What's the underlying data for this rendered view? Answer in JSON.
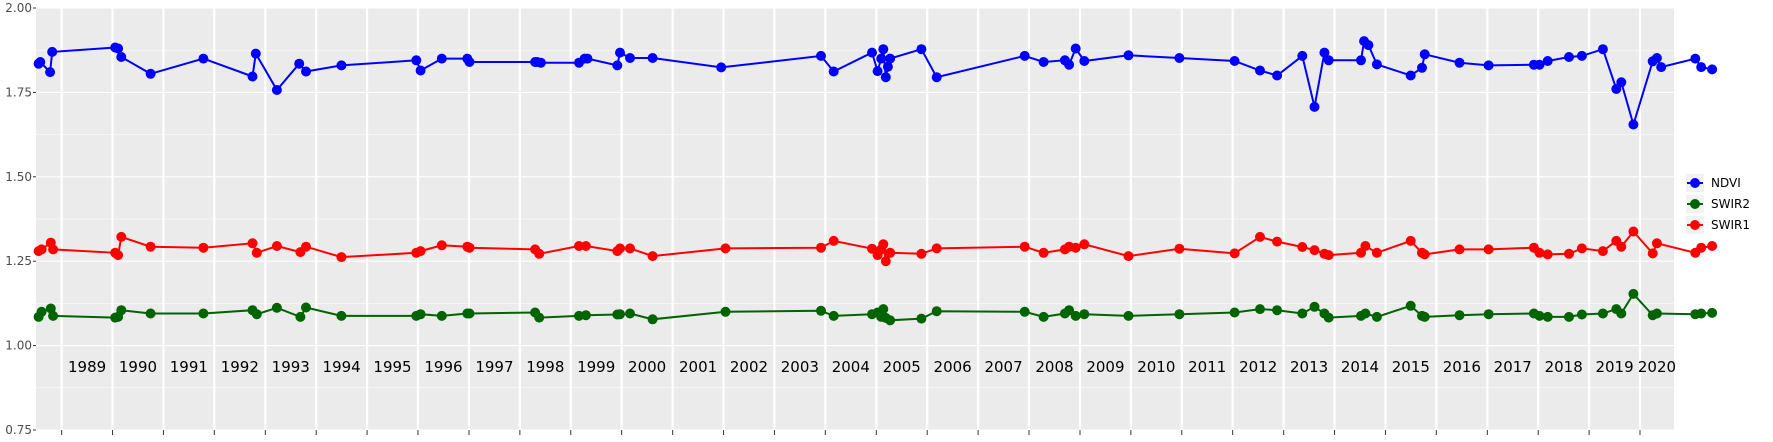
{
  "chart_data": {
    "type": "line",
    "x_axis": {
      "kind": "date",
      "xlim": [
        "1988-07-01",
        "2020-09-01"
      ]
    },
    "ylim": [
      0.75,
      2.0
    ],
    "y_ticks": [
      "0.75",
      "1.00",
      "1.25",
      "1.50",
      "1.75",
      "2.00"
    ],
    "year_labels": [
      "1989",
      "1990",
      "1991",
      "1992",
      "1993",
      "1994",
      "1995",
      "1996",
      "1997",
      "1998",
      "1999",
      "2000",
      "2001",
      "2002",
      "2003",
      "2004",
      "2005",
      "2006",
      "2007",
      "2008",
      "2009",
      "2010",
      "2011",
      "2012",
      "2013",
      "2014",
      "2015",
      "2016",
      "2017",
      "2018",
      "2019",
      "2020"
    ],
    "grid": true,
    "legend_position": "right",
    "series": [
      {
        "name": "NDVI",
        "color": "#0000FF",
        "points": [
          [
            "1988-07-20",
            1.835
          ],
          [
            "1988-08-01",
            1.84
          ],
          [
            "1988-10-10",
            1.81
          ],
          [
            "1988-10-25",
            1.87
          ],
          [
            "1990-01-20",
            1.883
          ],
          [
            "1990-02-10",
            1.88
          ],
          [
            "1990-03-05",
            1.855
          ],
          [
            "1990-10-01",
            1.805
          ],
          [
            "1991-10-15",
            1.85
          ],
          [
            "1992-10-01",
            1.797
          ],
          [
            "1992-10-25",
            1.865
          ],
          [
            "1993-03-25",
            1.757
          ],
          [
            "1993-09-01",
            1.835
          ],
          [
            "1993-10-20",
            1.812
          ],
          [
            "1994-07-01",
            1.83
          ],
          [
            "1995-12-20",
            1.845
          ],
          [
            "1996-01-20",
            1.815
          ],
          [
            "1996-06-20",
            1.85
          ],
          [
            "1996-12-20",
            1.85
          ],
          [
            "1997-01-05",
            1.84
          ],
          [
            "1998-04-20",
            1.84
          ],
          [
            "1998-05-05",
            1.84
          ],
          [
            "1998-06-01",
            1.838
          ],
          [
            "1999-03-01",
            1.838
          ],
          [
            "1999-04-10",
            1.85
          ],
          [
            "1999-05-01",
            1.85
          ],
          [
            "1999-12-01",
            1.83
          ],
          [
            "1999-12-20",
            1.868
          ],
          [
            "2000-03-01",
            1.852
          ],
          [
            "2000-08-10",
            1.852
          ],
          [
            "2001-12-15",
            1.824
          ],
          [
            "2003-12-01",
            1.858
          ],
          [
            "2004-03-01",
            1.812
          ],
          [
            "2004-12-01",
            1.868
          ],
          [
            "2005-01-10",
            1.813
          ],
          [
            "2005-02-05",
            1.85
          ],
          [
            "2005-02-20",
            1.878
          ],
          [
            "2005-03-10",
            1.795
          ],
          [
            "2005-03-25",
            1.826
          ],
          [
            "2005-04-10",
            1.85
          ],
          [
            "2005-11-20",
            1.878
          ],
          [
            "2006-03-10",
            1.795
          ],
          [
            "2007-12-01",
            1.858
          ],
          [
            "2008-04-15",
            1.84
          ],
          [
            "2008-09-15",
            1.845
          ],
          [
            "2008-10-15",
            1.832
          ],
          [
            "2008-12-01",
            1.88
          ],
          [
            "2009-02-01",
            1.843
          ],
          [
            "2009-12-15",
            1.86
          ],
          [
            "2010-12-15",
            1.852
          ],
          [
            "2012-01-15",
            1.843
          ],
          [
            "2012-07-15",
            1.815
          ],
          [
            "2012-11-15",
            1.8
          ],
          [
            "2013-05-15",
            1.858
          ],
          [
            "2013-08-10",
            1.707
          ],
          [
            "2013-10-20",
            1.868
          ],
          [
            "2013-11-20",
            1.845
          ],
          [
            "2014-07-10",
            1.845
          ],
          [
            "2014-08-01",
            1.902
          ],
          [
            "2014-09-01",
            1.89
          ],
          [
            "2014-11-01",
            1.833
          ],
          [
            "2015-07-01",
            1.8
          ],
          [
            "2015-09-20",
            1.823
          ],
          [
            "2015-10-10",
            1.863
          ],
          [
            "2016-06-15",
            1.838
          ],
          [
            "2017-01-10",
            1.83
          ],
          [
            "2017-12-01",
            1.832
          ],
          [
            "2018-01-10",
            1.832
          ],
          [
            "2018-03-10",
            1.843
          ],
          [
            "2018-08-10",
            1.855
          ],
          [
            "2018-11-10",
            1.858
          ],
          [
            "2019-04-10",
            1.878
          ],
          [
            "2019-07-15",
            1.76
          ],
          [
            "2019-08-20",
            1.78
          ],
          [
            "2019-11-15",
            1.655
          ],
          [
            "2020-04-01",
            1.842
          ],
          [
            "2020-05-01",
            1.852
          ],
          [
            "2020-06-01",
            1.825
          ],
          [
            "2021-02-01",
            1.85
          ],
          [
            "2021-03-15",
            1.825
          ],
          [
            "2021-06-01",
            1.818
          ]
        ]
      },
      {
        "name": "SWIR2",
        "color": "#006400",
        "points": [
          [
            "1988-07-20",
            1.085
          ],
          [
            "1988-08-10",
            1.1
          ],
          [
            "1988-10-15",
            1.11
          ],
          [
            "1988-11-01",
            1.088
          ],
          [
            "1990-01-20",
            1.083
          ],
          [
            "1990-02-10",
            1.085
          ],
          [
            "1990-03-05",
            1.105
          ],
          [
            "1990-10-01",
            1.095
          ],
          [
            "1991-10-15",
            1.095
          ],
          [
            "1992-10-01",
            1.105
          ],
          [
            "1992-11-01",
            1.093
          ],
          [
            "1993-03-25",
            1.112
          ],
          [
            "1993-09-10",
            1.085
          ],
          [
            "1993-10-20",
            1.113
          ],
          [
            "1994-07-01",
            1.088
          ],
          [
            "1995-12-20",
            1.088
          ],
          [
            "1996-01-20",
            1.093
          ],
          [
            "1996-06-20",
            1.088
          ],
          [
            "1996-12-20",
            1.095
          ],
          [
            "1997-01-05",
            1.095
          ],
          [
            "1998-04-20",
            1.098
          ],
          [
            "1998-05-20",
            1.083
          ],
          [
            "1999-03-01",
            1.088
          ],
          [
            "1999-04-20",
            1.09
          ],
          [
            "1999-12-01",
            1.092
          ],
          [
            "1999-12-20",
            1.093
          ],
          [
            "2000-03-01",
            1.095
          ],
          [
            "2000-08-10",
            1.078
          ],
          [
            "2002-01-15",
            1.1
          ],
          [
            "2003-12-01",
            1.103
          ],
          [
            "2004-03-01",
            1.088
          ],
          [
            "2004-12-01",
            1.093
          ],
          [
            "2005-01-10",
            1.098
          ],
          [
            "2005-02-05",
            1.085
          ],
          [
            "2005-02-20",
            1.108
          ],
          [
            "2005-03-10",
            1.082
          ],
          [
            "2005-04-10",
            1.075
          ],
          [
            "2005-11-20",
            1.08
          ],
          [
            "2006-03-10",
            1.102
          ],
          [
            "2007-12-01",
            1.1
          ],
          [
            "2008-04-15",
            1.085
          ],
          [
            "2008-09-15",
            1.095
          ],
          [
            "2008-10-15",
            1.105
          ],
          [
            "2008-12-01",
            1.088
          ],
          [
            "2009-02-01",
            1.093
          ],
          [
            "2009-12-15",
            1.088
          ],
          [
            "2010-12-15",
            1.093
          ],
          [
            "2012-01-15",
            1.098
          ],
          [
            "2012-07-15",
            1.108
          ],
          [
            "2012-11-15",
            1.105
          ],
          [
            "2013-05-15",
            1.095
          ],
          [
            "2013-08-10",
            1.115
          ],
          [
            "2013-10-20",
            1.095
          ],
          [
            "2013-11-20",
            1.083
          ],
          [
            "2014-07-10",
            1.088
          ],
          [
            "2014-08-10",
            1.095
          ],
          [
            "2014-11-01",
            1.085
          ],
          [
            "2015-07-01",
            1.118
          ],
          [
            "2015-09-20",
            1.088
          ],
          [
            "2015-10-10",
            1.085
          ],
          [
            "2016-06-15",
            1.09
          ],
          [
            "2017-01-10",
            1.093
          ],
          [
            "2017-12-01",
            1.095
          ],
          [
            "2018-01-10",
            1.088
          ],
          [
            "2018-03-10",
            1.085
          ],
          [
            "2018-08-10",
            1.085
          ],
          [
            "2018-11-10",
            1.092
          ],
          [
            "2019-04-10",
            1.095
          ],
          [
            "2019-07-15",
            1.108
          ],
          [
            "2019-08-20",
            1.095
          ],
          [
            "2019-11-15",
            1.153
          ],
          [
            "2020-04-01",
            1.09
          ],
          [
            "2020-05-01",
            1.095
          ],
          [
            "2021-02-01",
            1.093
          ],
          [
            "2021-03-15",
            1.095
          ],
          [
            "2021-06-01",
            1.097
          ]
        ]
      },
      {
        "name": "SWIR1",
        "color": "#FF0000",
        "points": [
          [
            "1988-07-20",
            1.28
          ],
          [
            "1988-08-10",
            1.285
          ],
          [
            "1988-10-15",
            1.305
          ],
          [
            "1988-11-01",
            1.285
          ],
          [
            "1990-01-20",
            1.275
          ],
          [
            "1990-02-10",
            1.268
          ],
          [
            "1990-03-05",
            1.322
          ],
          [
            "1990-10-01",
            1.293
          ],
          [
            "1991-10-15",
            1.29
          ],
          [
            "1992-10-01",
            1.303
          ],
          [
            "1992-11-01",
            1.275
          ],
          [
            "1993-03-25",
            1.295
          ],
          [
            "1993-09-10",
            1.277
          ],
          [
            "1993-10-20",
            1.293
          ],
          [
            "1994-07-01",
            1.262
          ],
          [
            "1995-12-20",
            1.275
          ],
          [
            "1996-01-20",
            1.28
          ],
          [
            "1996-06-20",
            1.297
          ],
          [
            "1996-12-20",
            1.293
          ],
          [
            "1997-01-05",
            1.29
          ],
          [
            "1998-04-20",
            1.285
          ],
          [
            "1998-05-20",
            1.272
          ],
          [
            "1999-03-01",
            1.295
          ],
          [
            "1999-04-20",
            1.295
          ],
          [
            "1999-12-01",
            1.28
          ],
          [
            "1999-12-20",
            1.288
          ],
          [
            "2000-03-01",
            1.288
          ],
          [
            "2000-08-10",
            1.265
          ],
          [
            "2002-01-15",
            1.288
          ],
          [
            "2003-12-01",
            1.29
          ],
          [
            "2004-03-01",
            1.31
          ],
          [
            "2004-12-01",
            1.287
          ],
          [
            "2005-01-10",
            1.268
          ],
          [
            "2005-02-05",
            1.285
          ],
          [
            "2005-02-20",
            1.3
          ],
          [
            "2005-03-10",
            1.25
          ],
          [
            "2005-04-10",
            1.275
          ],
          [
            "2005-11-20",
            1.272
          ],
          [
            "2006-03-10",
            1.288
          ],
          [
            "2007-12-01",
            1.293
          ],
          [
            "2008-04-15",
            1.275
          ],
          [
            "2008-09-15",
            1.285
          ],
          [
            "2008-10-15",
            1.293
          ],
          [
            "2008-12-01",
            1.29
          ],
          [
            "2009-02-01",
            1.3
          ],
          [
            "2009-12-15",
            1.265
          ],
          [
            "2010-12-15",
            1.287
          ],
          [
            "2012-01-15",
            1.273
          ],
          [
            "2012-07-15",
            1.322
          ],
          [
            "2012-11-15",
            1.308
          ],
          [
            "2013-05-15",
            1.292
          ],
          [
            "2013-08-10",
            1.283
          ],
          [
            "2013-10-20",
            1.272
          ],
          [
            "2013-11-20",
            1.268
          ],
          [
            "2014-07-10",
            1.275
          ],
          [
            "2014-08-10",
            1.295
          ],
          [
            "2014-11-01",
            1.275
          ],
          [
            "2015-07-01",
            1.31
          ],
          [
            "2015-09-20",
            1.275
          ],
          [
            "2015-10-10",
            1.27
          ],
          [
            "2016-06-15",
            1.285
          ],
          [
            "2017-01-10",
            1.285
          ],
          [
            "2017-12-01",
            1.29
          ],
          [
            "2018-01-10",
            1.275
          ],
          [
            "2018-03-10",
            1.27
          ],
          [
            "2018-08-10",
            1.272
          ],
          [
            "2018-11-10",
            1.288
          ],
          [
            "2019-04-10",
            1.28
          ],
          [
            "2019-07-15",
            1.31
          ],
          [
            "2019-08-20",
            1.293
          ],
          [
            "2019-11-15",
            1.338
          ],
          [
            "2020-04-01",
            1.273
          ],
          [
            "2020-05-01",
            1.303
          ],
          [
            "2021-02-01",
            1.275
          ],
          [
            "2021-03-15",
            1.29
          ],
          [
            "2021-06-01",
            1.295
          ]
        ]
      }
    ]
  }
}
